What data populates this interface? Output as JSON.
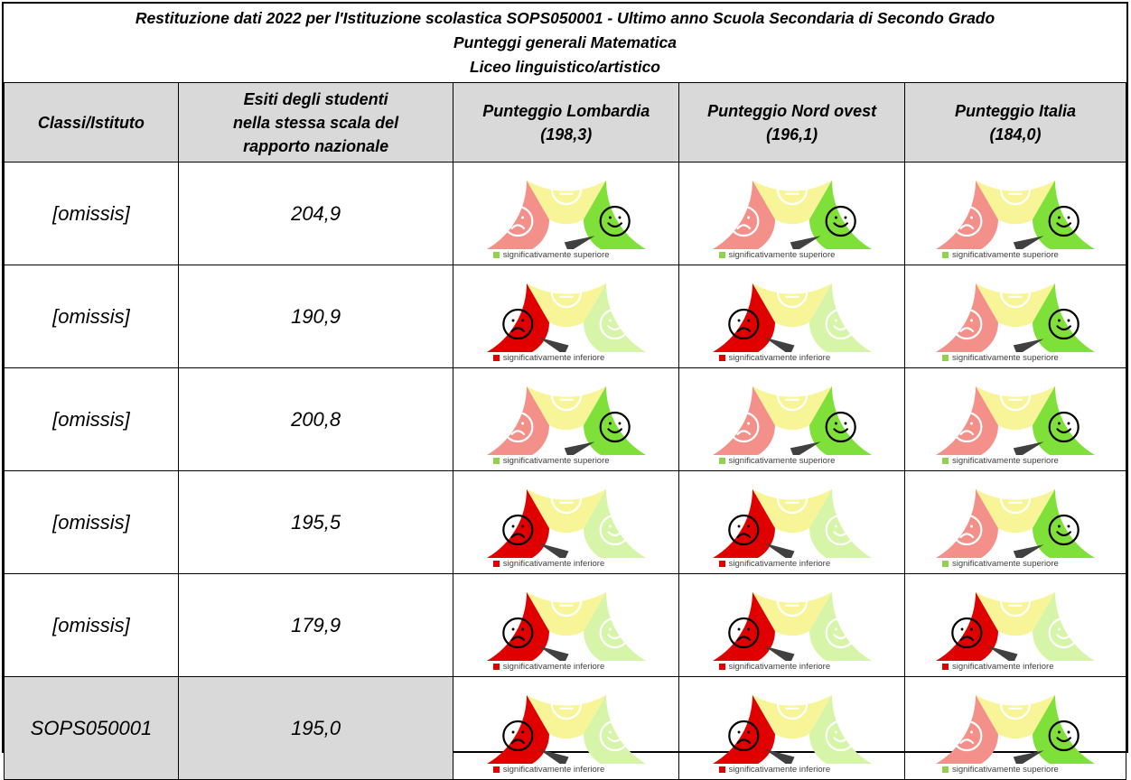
{
  "title": {
    "line1": "Restituzione dati 2022 per l'Istituzione scolastica SOPS050001 - Ultimo anno Scuola Secondaria di Secondo Grado",
    "line2": "Punteggi generali Matematica",
    "line3": "Liceo linguistico/artistico"
  },
  "headers": {
    "col1": "Classi/Istituto",
    "col2_lines": [
      "Esiti degli studenti",
      "nella stessa scala del",
      "rapporto nazionale"
    ],
    "col3_lines": [
      "Punteggio Lombardia",
      "(198,3)"
    ],
    "col4_lines": [
      "Punteggio Nord ovest",
      "(196,1)"
    ],
    "col5_lines": [
      "Punteggio Italia",
      "(184,0)"
    ]
  },
  "legend_labels": {
    "superiore": "significativamente superiore",
    "inferiore": "significativamente inferiore"
  },
  "colors": {
    "header_gray": "#d9d9d9",
    "red_dim": "#f4908a",
    "red_active": "#e00000",
    "yellow_dim": "#f8f598",
    "green_dim": "#d6f5a8",
    "green_active": "#7fe03a",
    "legend_green": "#92d050",
    "legend_red": "#e00000"
  },
  "rows": [
    {
      "name": "[omissis]",
      "score": "204,9",
      "highlight": false,
      "results": [
        "superiore",
        "superiore",
        "superiore"
      ]
    },
    {
      "name": "[omissis]",
      "score": "190,9",
      "highlight": false,
      "results": [
        "inferiore",
        "inferiore",
        "superiore"
      ]
    },
    {
      "name": "[omissis]",
      "score": "200,8",
      "highlight": false,
      "results": [
        "superiore",
        "superiore",
        "superiore"
      ]
    },
    {
      "name": "[omissis]",
      "score": "195,5",
      "highlight": false,
      "results": [
        "inferiore",
        "inferiore",
        "superiore"
      ]
    },
    {
      "name": "[omissis]",
      "score": "179,9",
      "highlight": false,
      "results": [
        "inferiore",
        "inferiore",
        "inferiore"
      ]
    },
    {
      "name": "SOPS050001",
      "score": "195,0",
      "highlight": true,
      "results": [
        "inferiore",
        "inferiore",
        "superiore"
      ]
    }
  ]
}
